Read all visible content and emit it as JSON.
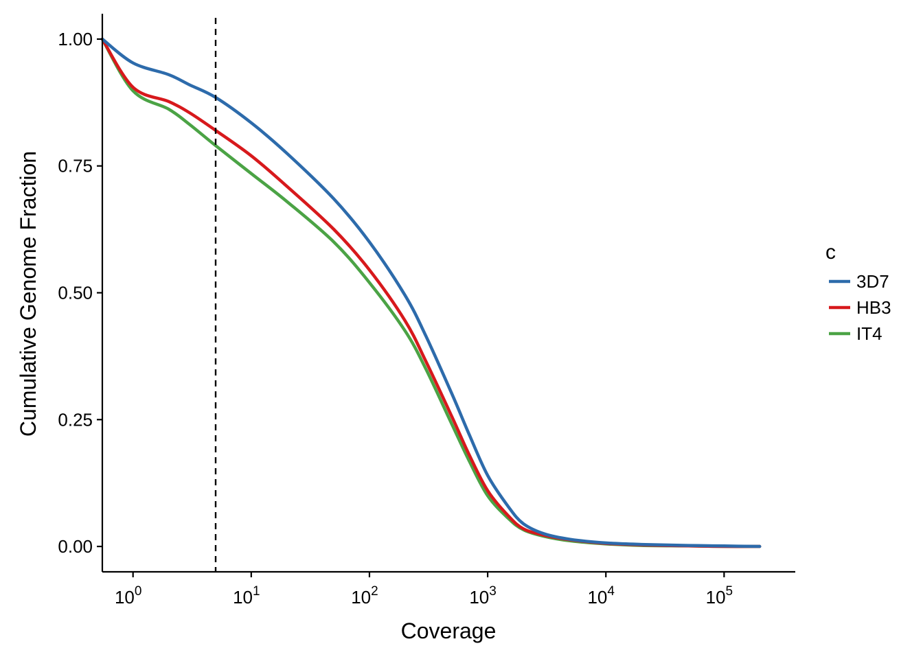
{
  "chart_data": {
    "type": "line",
    "title": "",
    "xlabel": "Coverage",
    "ylabel": "Cumulative Genome Fraction",
    "x_scale": "log10",
    "xlim": [
      0.55,
      400000
    ],
    "ylim": [
      -0.05,
      1.05
    ],
    "x_ticks": [
      {
        "value": 1,
        "base": "10",
        "exp": "0"
      },
      {
        "value": 10,
        "base": "10",
        "exp": "1"
      },
      {
        "value": 100,
        "base": "10",
        "exp": "2"
      },
      {
        "value": 1000,
        "base": "10",
        "exp": "3"
      },
      {
        "value": 10000,
        "base": "10",
        "exp": "4"
      },
      {
        "value": 100000,
        "base": "10",
        "exp": "5"
      }
    ],
    "y_ticks": [
      {
        "value": 0,
        "label": "0.00"
      },
      {
        "value": 0.25,
        "label": "0.25"
      },
      {
        "value": 0.5,
        "label": "0.50"
      },
      {
        "value": 0.75,
        "label": "0.75"
      },
      {
        "value": 1,
        "label": "1.00"
      }
    ],
    "grid": false,
    "reference_line": {
      "x": 5,
      "style": "dashed",
      "color": "#000000"
    },
    "legend": {
      "title": "c",
      "placement": "right"
    },
    "series": [
      {
        "name": "3D7",
        "color": "#2D6BAB",
        "points": [
          [
            0.55,
            1.0
          ],
          [
            1,
            0.953
          ],
          [
            2,
            0.93
          ],
          [
            3,
            0.91
          ],
          [
            5,
            0.885
          ],
          [
            10,
            0.835
          ],
          [
            20,
            0.775
          ],
          [
            50,
            0.685
          ],
          [
            100,
            0.6
          ],
          [
            200,
            0.495
          ],
          [
            300,
            0.415
          ],
          [
            500,
            0.3
          ],
          [
            700,
            0.22
          ],
          [
            1000,
            0.14
          ],
          [
            1500,
            0.078
          ],
          [
            2000,
            0.045
          ],
          [
            3000,
            0.025
          ],
          [
            5000,
            0.014
          ],
          [
            10000,
            0.007
          ],
          [
            20000,
            0.004
          ],
          [
            50000,
            0.002
          ],
          [
            100000,
            0.001
          ],
          [
            200000,
            0.0
          ]
        ]
      },
      {
        "name": "HB3",
        "color": "#D7191C",
        "points": [
          [
            0.55,
            1.0
          ],
          [
            1,
            0.905
          ],
          [
            2,
            0.877
          ],
          [
            3,
            0.855
          ],
          [
            5,
            0.82
          ],
          [
            10,
            0.77
          ],
          [
            20,
            0.71
          ],
          [
            50,
            0.625
          ],
          [
            100,
            0.545
          ],
          [
            200,
            0.445
          ],
          [
            300,
            0.365
          ],
          [
            500,
            0.255
          ],
          [
            700,
            0.18
          ],
          [
            1000,
            0.11
          ],
          [
            1500,
            0.06
          ],
          [
            2000,
            0.035
          ],
          [
            3000,
            0.022
          ],
          [
            5000,
            0.013
          ],
          [
            10000,
            0.006
          ],
          [
            20000,
            0.003
          ],
          [
            50000,
            0.001
          ],
          [
            100000,
            0.0
          ],
          [
            200000,
            0.0
          ]
        ]
      },
      {
        "name": "IT4",
        "color": "#4BA345",
        "points": [
          [
            0.55,
            1.0
          ],
          [
            1,
            0.898
          ],
          [
            2,
            0.862
          ],
          [
            3,
            0.832
          ],
          [
            5,
            0.79
          ],
          [
            10,
            0.735
          ],
          [
            20,
            0.68
          ],
          [
            50,
            0.6
          ],
          [
            100,
            0.52
          ],
          [
            200,
            0.425
          ],
          [
            300,
            0.35
          ],
          [
            500,
            0.24
          ],
          [
            700,
            0.168
          ],
          [
            1000,
            0.1
          ],
          [
            1500,
            0.055
          ],
          [
            2000,
            0.033
          ],
          [
            3000,
            0.02
          ],
          [
            5000,
            0.011
          ],
          [
            10000,
            0.005
          ],
          [
            20000,
            0.002
          ],
          [
            50000,
            0.001
          ],
          [
            100000,
            0.0
          ],
          [
            200000,
            0.0
          ]
        ]
      }
    ]
  }
}
